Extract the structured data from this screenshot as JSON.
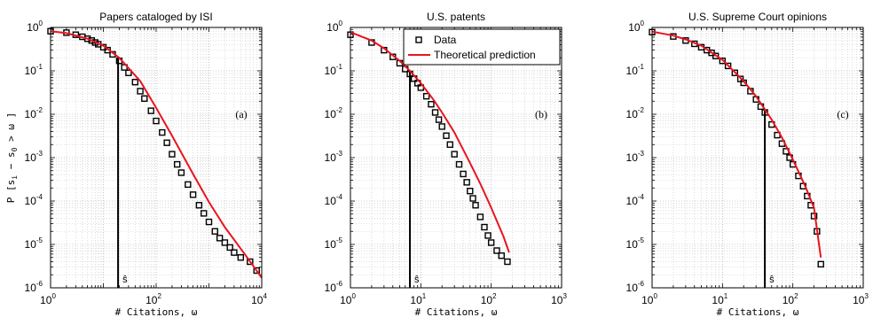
{
  "figure": {
    "ylabel_prefix": "P [",
    "ylabel_var": "s",
    "ylabel_i": "i",
    "ylabel_minus": "−",
    "ylabel_zero": "0",
    "ylabel_suffix": " > ω ]"
  },
  "chart_data": [
    {
      "type": "scatter",
      "title": "Papers cataloged by ISI",
      "panel_label": "(a)",
      "xlabel": "# Citations, ω",
      "ylabel": "P [ s_i − s_0 > ω ]",
      "xscale": "log",
      "yscale": "log",
      "xlim": [
        1,
        10000
      ],
      "ylim": [
        1e-06,
        1
      ],
      "x_ticks": [
        {
          "base": "10",
          "exp": "0",
          "value": 1
        },
        {
          "base": "10",
          "exp": "2",
          "value": 100
        },
        {
          "base": "10",
          "exp": "4",
          "value": 10000
        }
      ],
      "y_ticks": [
        {
          "base": "10",
          "exp": "0",
          "value": 1
        },
        {
          "base": "10",
          "exp": "-1",
          "value": 0.1
        },
        {
          "base": "10",
          "exp": "-2",
          "value": 0.01
        },
        {
          "base": "10",
          "exp": "-3",
          "value": 0.001
        },
        {
          "base": "10",
          "exp": "-4",
          "value": 0.0001
        },
        {
          "base": "10",
          "exp": "-5",
          "value": 1e-05
        },
        {
          "base": "10",
          "exp": "-6",
          "value": 1e-06
        }
      ],
      "grid": true,
      "s_hat": {
        "label": "ŝ",
        "x": 19
      },
      "series": [
        {
          "name": "Data",
          "marker": "square",
          "color": "#000000",
          "x": [
            1,
            2,
            3,
            4,
            5,
            6,
            7,
            8,
            10,
            12,
            15,
            20,
            25,
            30,
            40,
            50,
            60,
            80,
            100,
            130,
            160,
            200,
            250,
            300,
            400,
            500,
            650,
            800,
            1000,
            1300,
            1600,
            2000,
            2500,
            3000,
            4000,
            6000,
            8000
          ],
          "y": [
            0.82,
            0.76,
            0.68,
            0.61,
            0.55,
            0.5,
            0.45,
            0.41,
            0.35,
            0.3,
            0.24,
            0.17,
            0.12,
            0.09,
            0.055,
            0.034,
            0.023,
            0.012,
            0.007,
            0.0038,
            0.0022,
            0.0012,
            0.0007,
            0.00045,
            0.00024,
            0.00014,
            8e-05,
            5.2e-05,
            3.3e-05,
            2e-05,
            1.4e-05,
            1.1e-05,
            8.5e-06,
            6.5e-06,
            5e-06,
            4e-06,
            2.5e-06
          ]
        },
        {
          "name": "Theoretical prediction",
          "marker": "line",
          "color": "#e8141e",
          "x": [
            1,
            2,
            5,
            10,
            20,
            50,
            100,
            200,
            500,
            1000,
            2000,
            5000,
            10000
          ],
          "y": [
            0.82,
            0.74,
            0.55,
            0.38,
            0.2,
            0.058,
            0.014,
            0.0032,
            0.00042,
            9.5e-05,
            2.5e-05,
            5.5e-06,
            1.7e-06
          ]
        }
      ]
    },
    {
      "type": "scatter",
      "title": "U.S. patents",
      "panel_label": "(b)",
      "xlabel": "# Citations, ω",
      "xscale": "log",
      "yscale": "log",
      "xlim": [
        1,
        1000
      ],
      "ylim": [
        1e-06,
        1
      ],
      "x_ticks": [
        {
          "base": "10",
          "exp": "0",
          "value": 1
        },
        {
          "base": "10",
          "exp": "1",
          "value": 10
        },
        {
          "base": "10",
          "exp": "2",
          "value": 100
        },
        {
          "base": "10",
          "exp": "3",
          "value": 1000
        }
      ],
      "y_ticks": [
        {
          "base": "10",
          "exp": "0",
          "value": 1
        },
        {
          "base": "10",
          "exp": "-1",
          "value": 0.1
        },
        {
          "base": "10",
          "exp": "-2",
          "value": 0.01
        },
        {
          "base": "10",
          "exp": "-3",
          "value": 0.001
        },
        {
          "base": "10",
          "exp": "-4",
          "value": 0.0001
        },
        {
          "base": "10",
          "exp": "-5",
          "value": 1e-05
        },
        {
          "base": "10",
          "exp": "-6",
          "value": 1e-06
        }
      ],
      "grid": true,
      "legend": "top-right",
      "s_hat": {
        "label": "ŝ",
        "x": 7
      },
      "series": [
        {
          "name": "Data",
          "marker": "square",
          "color": "#000000",
          "x": [
            1,
            2,
            3,
            4,
            5,
            6,
            7,
            8,
            9,
            10,
            12,
            14,
            16,
            18,
            20,
            23,
            26,
            30,
            35,
            40,
            45,
            50,
            55,
            60,
            70,
            80,
            90,
            100,
            120,
            140,
            170
          ],
          "y": [
            0.68,
            0.45,
            0.3,
            0.21,
            0.15,
            0.11,
            0.085,
            0.066,
            0.052,
            0.041,
            0.026,
            0.017,
            0.011,
            0.0075,
            0.0052,
            0.0032,
            0.002,
            0.0012,
            0.0007,
            0.00042,
            0.00027,
            0.00017,
            0.000115,
            8e-05,
            4.3e-05,
            2.5e-05,
            1.6e-05,
            1.1e-05,
            7.2e-06,
            5.5e-06,
            4e-06
          ]
        },
        {
          "name": "Theoretical prediction",
          "marker": "line",
          "color": "#e8141e",
          "x": [
            1,
            2,
            3,
            5,
            7,
            10,
            15,
            20,
            30,
            50,
            70,
            100,
            150,
            180
          ],
          "y": [
            0.78,
            0.5,
            0.33,
            0.17,
            0.1,
            0.052,
            0.022,
            0.011,
            0.0038,
            0.00075,
            0.00025,
            7e-05,
            1.5e-05,
            6.5e-06
          ]
        }
      ]
    },
    {
      "type": "scatter",
      "title": "U.S. Supreme Court opinions",
      "panel_label": "(c)",
      "xlabel": "# Citations, ω",
      "xscale": "log",
      "yscale": "log",
      "xlim": [
        1,
        1000
      ],
      "ylim": [
        1e-06,
        1
      ],
      "x_ticks": [
        {
          "base": "10",
          "exp": "0",
          "value": 1
        },
        {
          "base": "10",
          "exp": "1",
          "value": 10
        },
        {
          "base": "10",
          "exp": "2",
          "value": 100
        },
        {
          "base": "10",
          "exp": "3",
          "value": 1000
        }
      ],
      "y_ticks": [
        {
          "base": "10",
          "exp": "0",
          "value": 1
        },
        {
          "base": "10",
          "exp": "-1",
          "value": 0.1
        },
        {
          "base": "10",
          "exp": "-2",
          "value": 0.01
        },
        {
          "base": "10",
          "exp": "-3",
          "value": 0.001
        },
        {
          "base": "10",
          "exp": "-4",
          "value": 0.0001
        },
        {
          "base": "10",
          "exp": "-5",
          "value": 1e-05
        },
        {
          "base": "10",
          "exp": "-6",
          "value": 1e-06
        }
      ],
      "grid": true,
      "s_hat": {
        "label": "ŝ",
        "x": 40
      },
      "series": [
        {
          "name": "Data",
          "marker": "square",
          "color": "#000000",
          "x": [
            1,
            2,
            3,
            4,
            5,
            6,
            7,
            8,
            10,
            12,
            15,
            18,
            20,
            25,
            30,
            35,
            40,
            50,
            60,
            70,
            80,
            90,
            100,
            120,
            140,
            160,
            180,
            200,
            220,
            250
          ],
          "y": [
            0.78,
            0.62,
            0.5,
            0.42,
            0.35,
            0.3,
            0.26,
            0.22,
            0.17,
            0.13,
            0.09,
            0.065,
            0.053,
            0.034,
            0.022,
            0.015,
            0.011,
            0.0058,
            0.0033,
            0.0021,
            0.0014,
            0.001,
            0.0007,
            0.00038,
            0.00022,
            0.00013,
            8e-05,
            4.5e-05,
            2e-05,
            3.5e-06
          ]
        },
        {
          "name": "Theoretical prediction",
          "marker": "line",
          "color": "#e8141e",
          "x": [
            1,
            2,
            3,
            5,
            10,
            20,
            30,
            50,
            70,
            100,
            150,
            200,
            250
          ],
          "y": [
            0.8,
            0.65,
            0.53,
            0.38,
            0.18,
            0.058,
            0.026,
            0.0075,
            0.0029,
            0.0009,
            0.00022,
            7e-05,
            5e-06
          ]
        }
      ]
    }
  ]
}
